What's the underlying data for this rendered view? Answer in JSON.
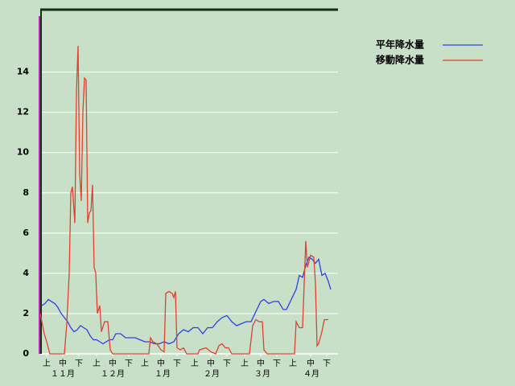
{
  "chart_data": {
    "type": "line",
    "xlim": [
      0,
      185
    ],
    "ylim": [
      0,
      17.1
    ],
    "yticks": [
      0,
      2,
      4,
      6,
      8,
      10,
      12,
      14
    ],
    "xticks": [
      {
        "value": 4,
        "label": "上"
      },
      {
        "value": 14,
        "label": "中"
      },
      {
        "value": 24,
        "label": "下"
      },
      {
        "value": 35,
        "label": "上"
      },
      {
        "value": 45,
        "label": "中"
      },
      {
        "value": 55,
        "label": "下"
      },
      {
        "value": 65,
        "label": "上"
      },
      {
        "value": 75,
        "label": "中"
      },
      {
        "value": 85,
        "label": "下"
      },
      {
        "value": 96,
        "label": "上"
      },
      {
        "value": 106,
        "label": "中"
      },
      {
        "value": 116,
        "label": "下"
      },
      {
        "value": 127,
        "label": "上"
      },
      {
        "value": 137,
        "label": "中"
      },
      {
        "value": 147,
        "label": "下"
      },
      {
        "value": 157,
        "label": "上"
      },
      {
        "value": 168,
        "label": "中"
      },
      {
        "value": 178,
        "label": "下"
      }
    ],
    "month_labels": [
      {
        "value": 14,
        "label": "１１月"
      },
      {
        "value": 45,
        "label": "１２月"
      },
      {
        "value": 76,
        "label": "１月"
      },
      {
        "value": 106.5,
        "label": "２月"
      },
      {
        "value": 138,
        "label": "３月"
      },
      {
        "value": 168.5,
        "label": "４月"
      }
    ],
    "grid": true,
    "series": [
      {
        "name": "平年降水量",
        "color": "#3040e0",
        "x": [
          1,
          3,
          5,
          7,
          9,
          11,
          13,
          15,
          17,
          19,
          21,
          23,
          25,
          27,
          29,
          31,
          33,
          35,
          37,
          39,
          41,
          43,
          45,
          47,
          50,
          53,
          56,
          59,
          62,
          65,
          68,
          71,
          74,
          77,
          80,
          83,
          86,
          89,
          92,
          95,
          98,
          101,
          104,
          107,
          110,
          113,
          116,
          119,
          122,
          125,
          128,
          131,
          134,
          137,
          139,
          142,
          145,
          148,
          151,
          153,
          156,
          159,
          161,
          163,
          165,
          167,
          169,
          171,
          173,
          175,
          177,
          179,
          180.5
        ],
        "values": [
          2.4,
          2.5,
          2.7,
          2.6,
          2.5,
          2.3,
          2.0,
          1.8,
          1.6,
          1.3,
          1.1,
          1.2,
          1.4,
          1.3,
          1.2,
          0.9,
          0.7,
          0.7,
          0.6,
          0.5,
          0.6,
          0.7,
          0.7,
          1.0,
          1.0,
          0.8,
          0.8,
          0.8,
          0.7,
          0.6,
          0.6,
          0.5,
          0.5,
          0.6,
          0.5,
          0.6,
          1.0,
          1.2,
          1.1,
          1.3,
          1.3,
          1.0,
          1.3,
          1.3,
          1.6,
          1.8,
          1.9,
          1.6,
          1.4,
          1.5,
          1.6,
          1.6,
          2.1,
          2.6,
          2.7,
          2.5,
          2.6,
          2.6,
          2.2,
          2.2,
          2.7,
          3.2,
          3.9,
          3.8,
          4.4,
          4.8,
          4.7,
          4.5,
          4.7,
          3.9,
          4.0,
          3.6,
          3.2
        ]
      },
      {
        "name": "移動降水量",
        "color": "#e04030",
        "x": [
          0,
          2.5,
          4,
          6,
          15,
          16.5,
          18,
          19,
          20,
          21.5,
          22.5,
          23.5,
          24.5,
          25.5,
          26.5,
          27.5,
          28.5,
          29.5,
          30.5,
          31.5,
          32.5,
          33.5,
          34.5,
          35.5,
          37,
          38,
          40,
          42,
          43.5,
          45,
          67.5,
          68.5,
          70,
          72.5,
          75,
          77,
          78,
          80,
          82,
          83,
          84,
          85,
          87,
          89,
          91,
          98,
          99,
          103,
          106,
          109,
          111,
          113,
          115,
          117,
          119,
          130,
          132,
          134,
          136,
          138,
          139,
          141,
          158,
          159,
          161,
          163,
          165,
          166,
          168,
          170,
          171,
          172,
          173,
          175,
          176.5,
          179
        ],
        "values": [
          2.0,
          1.0,
          0.6,
          0,
          0,
          1.5,
          4,
          8,
          8.3,
          6.5,
          13,
          15.3,
          9,
          7.6,
          12,
          13.7,
          13.6,
          6.5,
          7,
          7.1,
          8.4,
          4.3,
          4,
          2,
          2.4,
          1.1,
          1.6,
          1.6,
          0.2,
          0,
          0,
          0.8,
          0.6,
          0.5,
          0.2,
          0.1,
          3,
          3.1,
          3,
          2.8,
          3.1,
          0.3,
          0.2,
          0.3,
          0,
          0,
          0.2,
          0.3,
          0.1,
          0,
          0.4,
          0.5,
          0.3,
          0.3,
          0,
          0,
          1.4,
          1.7,
          1.6,
          1.6,
          0.2,
          0,
          0,
          1.6,
          1.3,
          1.3,
          5.6,
          4.3,
          4.9,
          4.8,
          3.5,
          0.4,
          0.5,
          1.1,
          1.7,
          1.7
        ]
      }
    ]
  }
}
